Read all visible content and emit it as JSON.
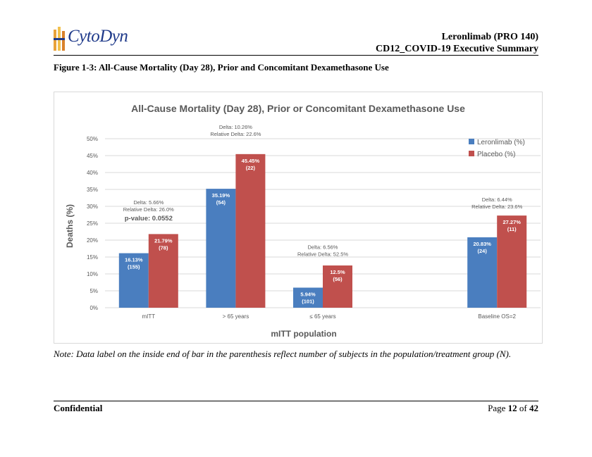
{
  "header": {
    "logo_text": "CytoDyn",
    "line1": "Leronlimab (PRO 140)",
    "line2": "CD12_COVID-19 Executive Summary"
  },
  "figure_title": "Figure 1-3: All-Cause Mortality (Day 28), Prior and Concomitant Dexamethasone Use",
  "note": "Note: Data label on the inside end of bar in the parenthesis reflect number of subjects in the population/treatment group (N).",
  "footer": {
    "left": "Confidential",
    "page_prefix": "Page",
    "page_num": "12",
    "page_of": "of",
    "page_total": "42"
  },
  "colors": {
    "leronlimab": "#4a7ebf",
    "placebo": "#c0504d",
    "grid": "#d9d9d9",
    "text": "#595959"
  },
  "chart_data": {
    "type": "bar",
    "title": "All-Cause Mortality (Day 28), Prior or Concomitant Dexamethasone Use",
    "xlabel": "mITT population",
    "ylabel": "Deaths (%)",
    "ylim": [
      0,
      50
    ],
    "yticks": [
      "0%",
      "5%",
      "10%",
      "15%",
      "20%",
      "25%",
      "30%",
      "35%",
      "40%",
      "45%",
      "50%"
    ],
    "categories": [
      "mITT",
      "> 65 years",
      "≤ 65 years",
      "",
      "Baseline OS=2"
    ],
    "series": [
      {
        "name": "Leronlimab (%)",
        "values": [
          16.13,
          35.19,
          5.94,
          null,
          20.83
        ],
        "labels": [
          "16.13%",
          "35.19%",
          "5.94%",
          "",
          "20.83%"
        ],
        "n": [
          "(155)",
          "(54)",
          "(101)",
          "",
          "(24)"
        ]
      },
      {
        "name": "Placebo (%)",
        "values": [
          21.79,
          45.45,
          12.5,
          null,
          27.27
        ],
        "labels": [
          "21.79%",
          "45.45%",
          "12.5%",
          "",
          "27.27%"
        ],
        "n": [
          "(78)",
          "(22)",
          "(56)",
          "",
          "(11)"
        ]
      }
    ],
    "annotations": [
      {
        "lines": [
          "Delta: 5.66%",
          "Relative Delta: 26.0%"
        ],
        "extra": "p-value: 0.0552",
        "group": 0
      },
      {
        "lines": [
          "Delta: 10.26%",
          "Relative Delta: 22.6%"
        ],
        "extra": "",
        "group": 1
      },
      {
        "lines": [
          "Delta: 6.56%",
          "Relative Delta: 52.5%"
        ],
        "extra": "",
        "group": 2
      },
      {
        "lines": [
          "Delta: 6.44%",
          "Relative Delta: 23.6%"
        ],
        "extra": "",
        "group": 4
      }
    ],
    "legend_position": "top-right"
  }
}
